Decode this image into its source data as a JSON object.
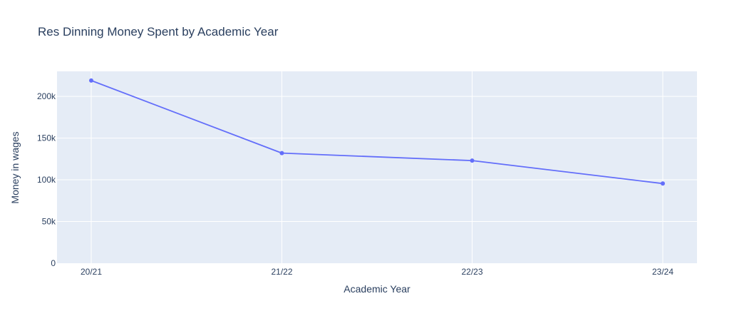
{
  "chart_data": {
    "type": "line",
    "title": "Res Dinning Money Spent by Academic Year",
    "xlabel": "Academic Year",
    "ylabel": "Money in wages",
    "categories": [
      "20/21",
      "21/22",
      "22/23",
      "23/24"
    ],
    "series": [
      {
        "values": [
          219000,
          132000,
          123000,
          95500
        ],
        "color": "#636efa"
      }
    ],
    "ylim": [
      0,
      230000
    ],
    "yticks": [
      0,
      50000,
      100000,
      150000,
      200000
    ],
    "ytick_labels": [
      "0",
      "50k",
      "100k",
      "150k",
      "200k"
    ],
    "grid": true,
    "plot_background": "#e5ecf6",
    "grid_color": "#ffffff",
    "text_color": "#2a3f5f",
    "markers": true
  }
}
